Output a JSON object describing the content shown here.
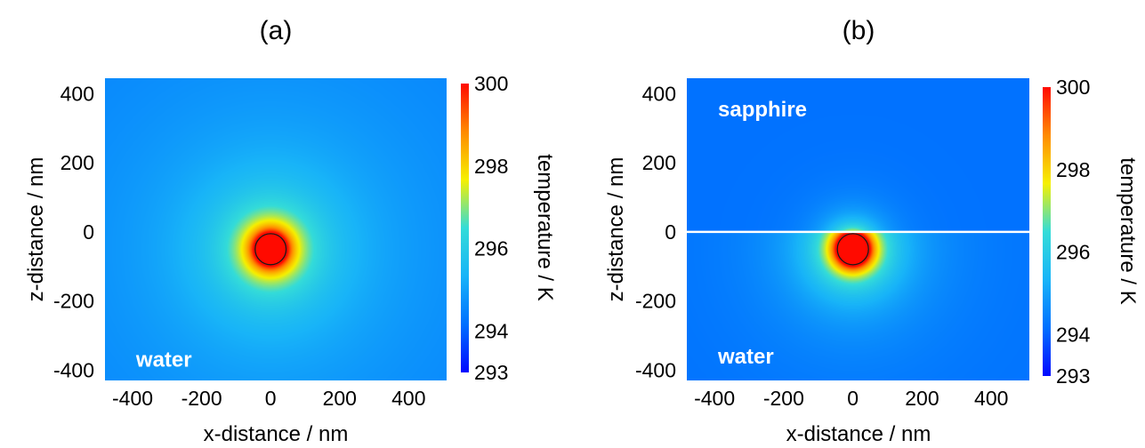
{
  "colors": {
    "colormap": [
      "#0008ff",
      "#0070ff",
      "#18b4f8",
      "#34dcd8",
      "#f6f000",
      "#ff8a00",
      "#ff0a00"
    ],
    "particle_outline": "#1a1a1a",
    "interface_line": "#ffffff",
    "medium_label": "#ffffff"
  },
  "chart_data": [
    {
      "type": "heatmap",
      "title": "(a)",
      "xlabel": "x-distance / nm",
      "ylabel": "z-distance / nm",
      "xlim": [
        -480,
        510
      ],
      "ylim": [
        -430,
        445
      ],
      "xticks": [
        -400,
        -200,
        0,
        200,
        400
      ],
      "yticks": [
        400,
        200,
        0,
        -200,
        -400
      ],
      "colorbar": {
        "label": "temperature / K",
        "min": 293,
        "max": 300,
        "ticks": [
          300,
          298,
          296,
          294,
          293
        ]
      },
      "particle": {
        "x": 0,
        "z": -50,
        "radius": 50
      },
      "temperature_max": 300,
      "temperature_far_field": 294.2,
      "medium_labels": [
        {
          "text": "water",
          "x": -390,
          "z": -370
        }
      ]
    },
    {
      "type": "heatmap",
      "title": "(b)",
      "xlabel": "x-distance / nm",
      "ylabel": "z-distance / nm",
      "xlim": [
        -480,
        510
      ],
      "ylim": [
        -430,
        445
      ],
      "xticks": [
        -400,
        -200,
        0,
        200,
        400
      ],
      "yticks": [
        400,
        200,
        0,
        -200,
        -400
      ],
      "colorbar": {
        "label": "temperature / K",
        "min": 293,
        "max": 300,
        "ticks": [
          300,
          298,
          296,
          294,
          293
        ]
      },
      "particle": {
        "x": 0,
        "z": -50,
        "radius": 50
      },
      "temperature_max": 300,
      "temperature_far_field": 294.2,
      "interface_z": 0,
      "medium_labels": [
        {
          "text": "sapphire",
          "x": -390,
          "z": 355
        },
        {
          "text": "water",
          "x": -390,
          "z": -360
        }
      ]
    }
  ]
}
